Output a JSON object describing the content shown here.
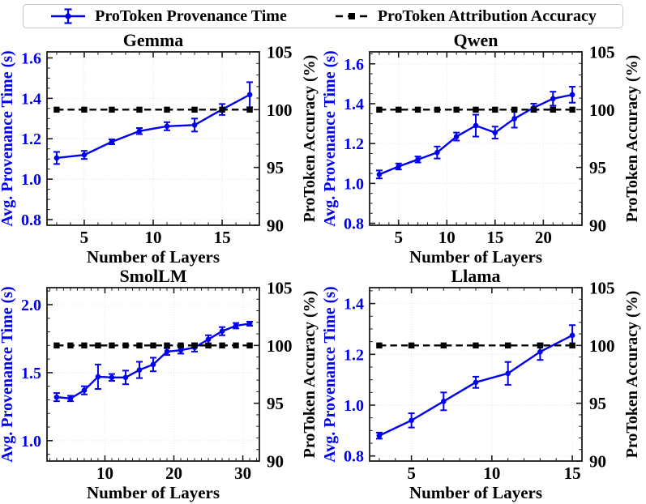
{
  "legend": {
    "provenance_label": "ProToken Provenance Time",
    "accuracy_label": "ProToken Attribution Accuracy"
  },
  "colors": {
    "provenance_blue": "#0000ee",
    "accuracy_black": "#000000",
    "spine": "#1c1c1c",
    "grid": "#e4e4e4",
    "legend_border": "#c4c4c4"
  },
  "chart_data": [
    {
      "type": "line",
      "title": "Gemma",
      "xlabel": "Number of Layers",
      "ylabel_left": "Avg. Provenance Time (s)",
      "ylabel_right": "ProToken Accuracy (%)",
      "x": [
        3,
        5,
        7,
        9,
        11,
        13,
        15,
        17
      ],
      "series": [
        {
          "name": "ProToken Provenance Time",
          "axis": "left",
          "style": "errorbar-line",
          "values": [
            1.105,
            1.12,
            1.185,
            1.238,
            1.262,
            1.268,
            1.345,
            1.418
          ],
          "errors": [
            0.03,
            0.02,
            0.012,
            0.015,
            0.02,
            0.032,
            0.027,
            0.062
          ]
        },
        {
          "name": "ProToken Attribution Accuracy",
          "axis": "right",
          "style": "dashed-square",
          "values": [
            100,
            100,
            100,
            100,
            100,
            100,
            100,
            100
          ]
        }
      ],
      "xlim": [
        2.3,
        17.7
      ],
      "ylim_left": [
        0.772,
        1.63
      ],
      "ylim_right": [
        90,
        105
      ],
      "xticks": [
        5,
        10,
        15
      ],
      "xtick_labels": [
        "5",
        "10",
        "15"
      ],
      "yticks_left": [
        0.8,
        1.0,
        1.2,
        1.4,
        1.6
      ],
      "ytick_left_labels": [
        "0.8",
        "1.0",
        "1.2",
        "1.4",
        "1.6"
      ],
      "yticks_right": [
        90,
        95,
        100,
        105
      ],
      "ytick_right_labels": [
        "90",
        "95",
        "100",
        "105"
      ],
      "minor_x": 1,
      "minor_left": 0.05,
      "minor_right": 1,
      "grid": true,
      "legend_position": "top-outside"
    },
    {
      "type": "line",
      "title": "Qwen",
      "xlabel": "Number of Layers",
      "ylabel_left": "Avg. Provenance Time (s)",
      "ylabel_right": "ProToken Accuracy (%)",
      "x": [
        3,
        5,
        7,
        9,
        11,
        13,
        15,
        17,
        19,
        21,
        23
      ],
      "series": [
        {
          "name": "ProToken Provenance Time",
          "axis": "left",
          "style": "errorbar-line",
          "values": [
            1.045,
            1.085,
            1.12,
            1.155,
            1.235,
            1.29,
            1.255,
            1.325,
            1.38,
            1.425,
            1.445
          ],
          "errors": [
            0.02,
            0.015,
            0.015,
            0.03,
            0.02,
            0.055,
            0.03,
            0.045,
            0.02,
            0.035,
            0.04
          ]
        },
        {
          "name": "ProToken Attribution Accuracy",
          "axis": "right",
          "style": "dashed-square",
          "values": [
            100,
            100,
            100,
            100,
            100,
            100,
            100,
            100,
            100,
            100,
            100
          ]
        }
      ],
      "xlim": [
        2.0,
        24.0
      ],
      "ylim_left": [
        0.79,
        1.66
      ],
      "ylim_right": [
        90,
        105
      ],
      "xticks": [
        5,
        10,
        15,
        20
      ],
      "xtick_labels": [
        "5",
        "10",
        "15",
        "20"
      ],
      "yticks_left": [
        0.8,
        1.0,
        1.2,
        1.4,
        1.6
      ],
      "ytick_left_labels": [
        "0.8",
        "1.0",
        "1.2",
        "1.4",
        "1.6"
      ],
      "yticks_right": [
        90,
        95,
        100,
        105
      ],
      "ytick_right_labels": [
        "90",
        "95",
        "100",
        "105"
      ],
      "minor_x": 1,
      "minor_left": 0.05,
      "minor_right": 1,
      "grid": true,
      "legend_position": "top-outside"
    },
    {
      "type": "line",
      "title": "SmolLM",
      "xlabel": "Number of Layers",
      "ylabel_left": "Avg. Provenance Time (s)",
      "ylabel_right": "ProToken Accuracy (%)",
      "x": [
        3,
        5,
        7,
        9,
        11,
        13,
        15,
        17,
        19,
        21,
        23,
        25,
        27,
        29,
        31
      ],
      "series": [
        {
          "name": "ProToken Provenance Time",
          "axis": "left",
          "style": "errorbar-line",
          "values": [
            1.32,
            1.31,
            1.37,
            1.47,
            1.465,
            1.465,
            1.52,
            1.56,
            1.655,
            1.665,
            1.685,
            1.745,
            1.805,
            1.845,
            1.86
          ],
          "errors": [
            0.03,
            0.02,
            0.03,
            0.09,
            0.025,
            0.05,
            0.06,
            0.05,
            0.025,
            0.025,
            0.03,
            0.03,
            0.03,
            0.02,
            0.015
          ]
        },
        {
          "name": "ProToken Attribution Accuracy",
          "axis": "right",
          "style": "dashed-square",
          "values": [
            100,
            100,
            100,
            100,
            100,
            100,
            100,
            100,
            100,
            100,
            100,
            100,
            100,
            100,
            100
          ]
        }
      ],
      "xlim": [
        1.6,
        32.4
      ],
      "ylim_left": [
        0.85,
        2.125
      ],
      "ylim_right": [
        90,
        105
      ],
      "xticks": [
        10,
        20,
        30
      ],
      "xtick_labels": [
        "10",
        "20",
        "30"
      ],
      "yticks_left": [
        1.0,
        1.5,
        2.0
      ],
      "ytick_left_labels": [
        "1.0",
        "1.5",
        "2.0"
      ],
      "yticks_right": [
        90,
        95,
        100,
        105
      ],
      "ytick_right_labels": [
        "90",
        "95",
        "100",
        "105"
      ],
      "minor_x": 1,
      "minor_left": 0.1,
      "minor_right": 1,
      "grid": true,
      "legend_position": "top-outside"
    },
    {
      "type": "line",
      "title": "Llama",
      "xlabel": "Number of Layers",
      "ylabel_left": "Avg. Provenance Time (s)",
      "ylabel_right": "ProToken Accuracy (%)",
      "x": [
        3,
        5,
        7,
        9,
        11,
        13,
        15
      ],
      "series": [
        {
          "name": "ProToken Provenance Time",
          "axis": "left",
          "style": "errorbar-line",
          "values": [
            0.88,
            0.94,
            1.015,
            1.09,
            1.125,
            1.21,
            1.275
          ],
          "errors": [
            0.012,
            0.028,
            0.035,
            0.022,
            0.045,
            0.032,
            0.04
          ]
        },
        {
          "name": "ProToken Attribution Accuracy",
          "axis": "right",
          "style": "dashed-square",
          "values": [
            100,
            100,
            100,
            100,
            100,
            100,
            100
          ]
        }
      ],
      "xlim": [
        2.4,
        15.6
      ],
      "ylim_left": [
        0.78,
        1.4625
      ],
      "ylim_right": [
        90,
        105
      ],
      "xticks": [
        5,
        10,
        15
      ],
      "xtick_labels": [
        "5",
        "10",
        "15"
      ],
      "yticks_left": [
        0.8,
        1.0,
        1.2,
        1.4
      ],
      "ytick_left_labels": [
        "0.8",
        "1.0",
        "1.2",
        "1.4"
      ],
      "yticks_right": [
        90,
        95,
        100,
        105
      ],
      "ytick_right_labels": [
        "90",
        "95",
        "100",
        "105"
      ],
      "minor_x": 1,
      "minor_left": 0.05,
      "minor_right": 1,
      "grid": true,
      "legend_position": "top-outside"
    }
  ]
}
